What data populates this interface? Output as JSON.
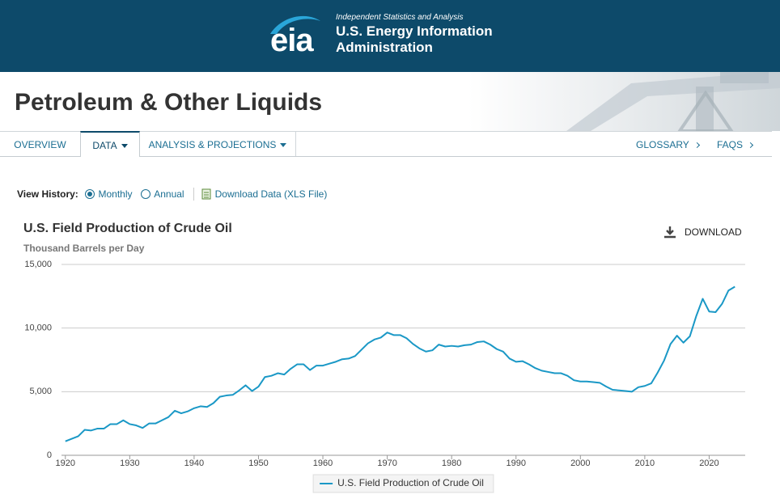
{
  "header": {
    "logo": "eia",
    "tagline": "Independent Statistics and Analysis",
    "org_line1": "U.S. Energy Information",
    "org_line2": "Administration"
  },
  "banner": {
    "title": "Petroleum & Other Liquids"
  },
  "nav": {
    "left": [
      "OVERVIEW",
      "DATA",
      "ANALYSIS & PROJECTIONS"
    ],
    "right": [
      "GLOSSARY",
      "FAQS"
    ]
  },
  "controls": {
    "label": "View History:",
    "options": [
      "Monthly",
      "Annual"
    ],
    "selected": 0,
    "download_link": "Download Data (XLS File)"
  },
  "chart_data": {
    "type": "line",
    "title": "U.S. Field Production of Crude Oil",
    "subtitle": "Thousand Barrels per Day",
    "download": "DOWNLOAD",
    "x": [
      1920,
      1921,
      1922,
      1923,
      1924,
      1925,
      1926,
      1927,
      1928,
      1929,
      1930,
      1931,
      1932,
      1933,
      1934,
      1935,
      1936,
      1937,
      1938,
      1939,
      1940,
      1941,
      1942,
      1943,
      1944,
      1945,
      1946,
      1947,
      1948,
      1949,
      1950,
      1951,
      1952,
      1953,
      1954,
      1955,
      1956,
      1957,
      1958,
      1959,
      1960,
      1961,
      1962,
      1963,
      1964,
      1965,
      1966,
      1967,
      1968,
      1969,
      1970,
      1971,
      1972,
      1973,
      1974,
      1975,
      1976,
      1977,
      1978,
      1979,
      1980,
      1981,
      1982,
      1983,
      1984,
      1985,
      1986,
      1987,
      1988,
      1989,
      1990,
      1991,
      1992,
      1993,
      1994,
      1995,
      1996,
      1997,
      1998,
      1999,
      2000,
      2001,
      2002,
      2003,
      2004,
      2005,
      2006,
      2007,
      2008,
      2009,
      2010,
      2011,
      2012,
      2013,
      2014,
      2015,
      2016,
      2017,
      2018,
      2019,
      2020,
      2021,
      2022,
      2023,
      2024
    ],
    "series": [
      {
        "name": "U.S. Field Production of Crude Oil",
        "color": "#1a98c6",
        "values": [
          1100,
          1300,
          1500,
          2000,
          1950,
          2100,
          2100,
          2450,
          2450,
          2750,
          2450,
          2350,
          2150,
          2500,
          2500,
          2750,
          3000,
          3500,
          3300,
          3450,
          3700,
          3850,
          3800,
          4100,
          4600,
          4700,
          4750,
          5100,
          5500,
          5050,
          5400,
          6150,
          6250,
          6450,
          6350,
          6800,
          7150,
          7150,
          6700,
          7050,
          7050,
          7200,
          7350,
          7550,
          7600,
          7800,
          8300,
          8800,
          9100,
          9250,
          9650,
          9450,
          9450,
          9200,
          8750,
          8400,
          8150,
          8250,
          8700,
          8550,
          8600,
          8550,
          8650,
          8700,
          8900,
          8950,
          8700,
          8350,
          8150,
          7600,
          7350,
          7400,
          7150,
          6850,
          6650,
          6550,
          6450,
          6450,
          6250,
          5900,
          5800,
          5800,
          5750,
          5700,
          5400,
          5150,
          5100,
          5050,
          5000,
          5350,
          5450,
          5650,
          6500,
          7450,
          8750,
          9400,
          8850,
          9350,
          10950,
          12300,
          11300,
          11250,
          11900,
          12950,
          13250
        ]
      }
    ],
    "xlim": [
      1919.4,
      2025.6
    ],
    "xticks": [
      1920,
      1930,
      1940,
      1950,
      1960,
      1970,
      1980,
      1990,
      2000,
      2010,
      2020
    ],
    "ylim": [
      0,
      15000
    ],
    "yticks": [
      0,
      {
        "value": 5000,
        "label": "5,000"
      },
      {
        "value": 10000,
        "label": "10,000"
      },
      {
        "value": 15000,
        "label": "15,000"
      }
    ],
    "grid": true,
    "legend": "bottom"
  }
}
